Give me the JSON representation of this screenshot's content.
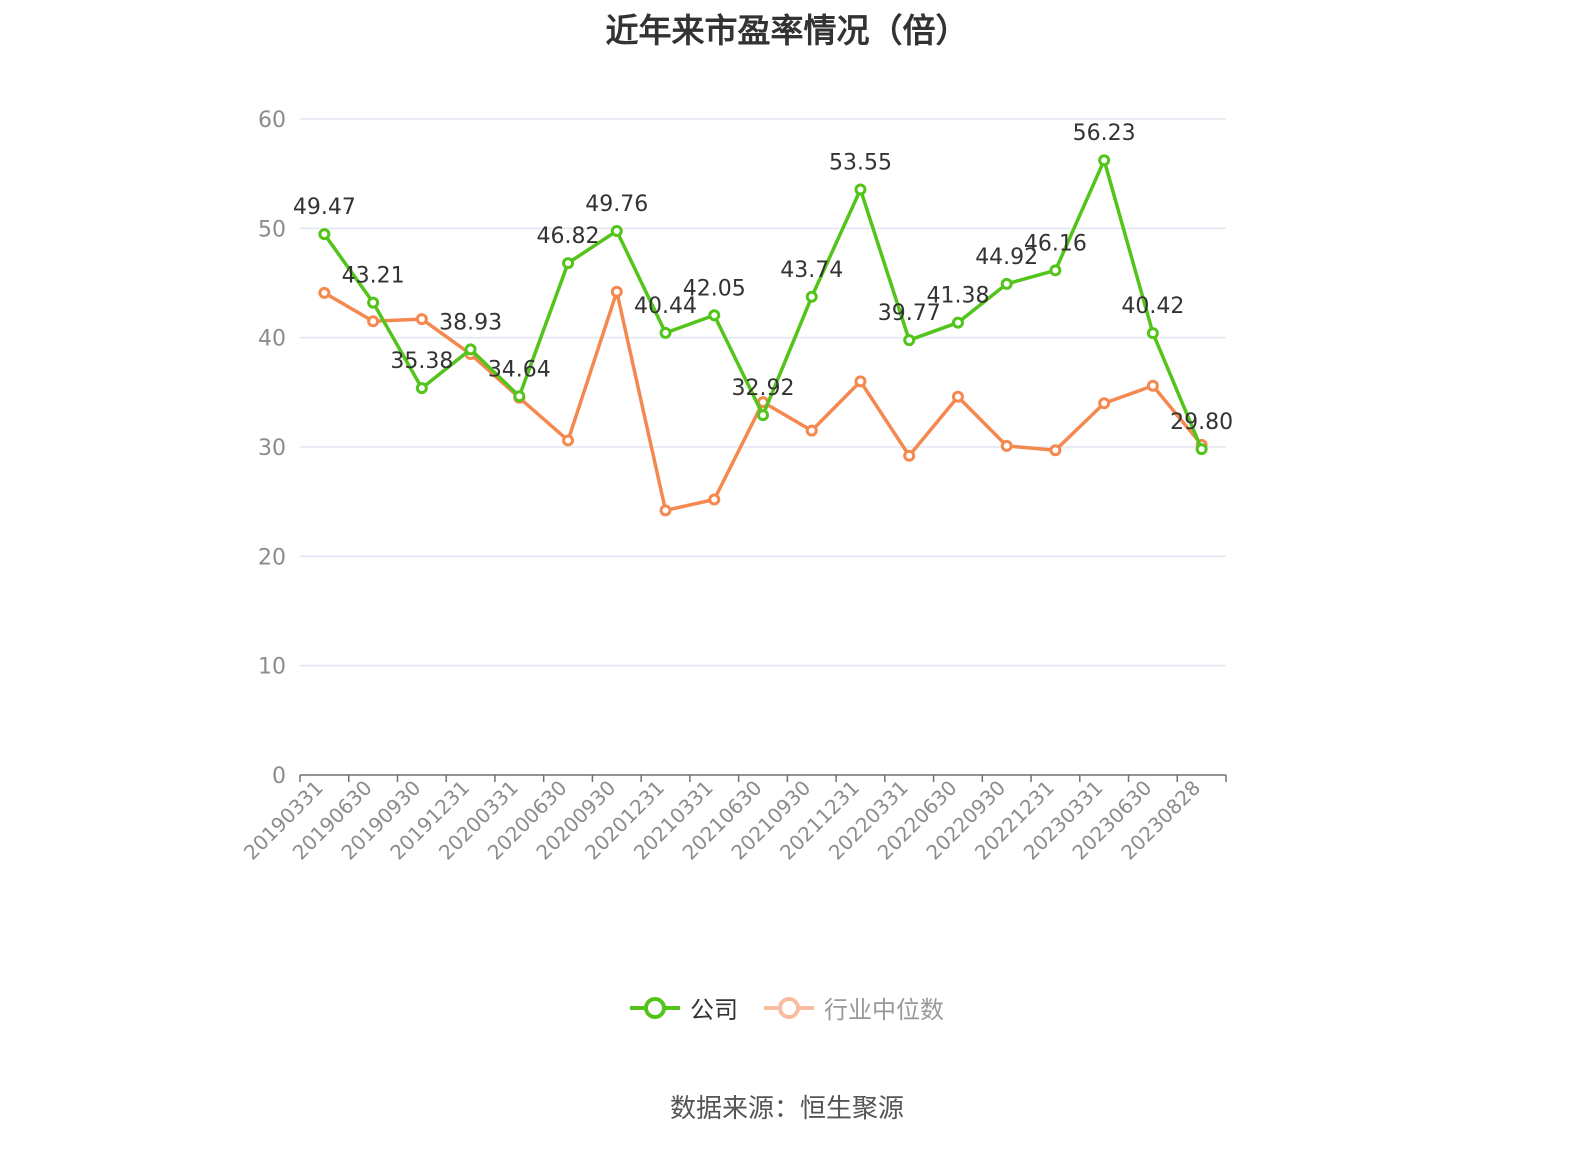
{
  "chart_data": {
    "type": "line",
    "title": "近年来市盈率情况（倍）",
    "categories": [
      "20190331",
      "20190630",
      "20190930",
      "20191231",
      "20200331",
      "20200630",
      "20200930",
      "20201231",
      "20210331",
      "20210630",
      "20210930",
      "20211231",
      "20220331",
      "20220630",
      "20220930",
      "20221231",
      "20230331",
      "20230630",
      "20230828"
    ],
    "ylim": [
      0,
      60
    ],
    "yticks": [
      0,
      10,
      20,
      30,
      40,
      50,
      60
    ],
    "grid": true,
    "legend_position": "bottom",
    "series": [
      {
        "name": "公司",
        "color": "#52c41a",
        "labels_shown": true,
        "values": [
          49.47,
          43.21,
          35.38,
          38.93,
          34.64,
          46.82,
          49.76,
          40.44,
          42.05,
          32.92,
          43.74,
          53.55,
          39.77,
          41.38,
          44.92,
          46.16,
          56.23,
          40.42,
          29.8
        ],
        "value_labels": [
          "49.47",
          "43.21",
          "35.38",
          "38.93",
          "34.64",
          "46.82",
          "49.76",
          "40.44",
          "42.05",
          "32.92",
          "43.74",
          "53.55",
          "39.77",
          "41.38",
          "44.92",
          "46.16",
          "56.23",
          "40.42",
          "29.80"
        ]
      },
      {
        "name": "行业中位数",
        "color": "#f5884f",
        "labels_shown": false,
        "values": [
          44.1,
          41.5,
          41.7,
          38.5,
          34.5,
          30.6,
          44.2,
          24.2,
          25.2,
          34.1,
          31.5,
          36.0,
          29.2,
          34.6,
          30.1,
          29.7,
          34.0,
          35.6,
          30.2
        ]
      }
    ],
    "source": "数据来源：恒生聚源"
  }
}
